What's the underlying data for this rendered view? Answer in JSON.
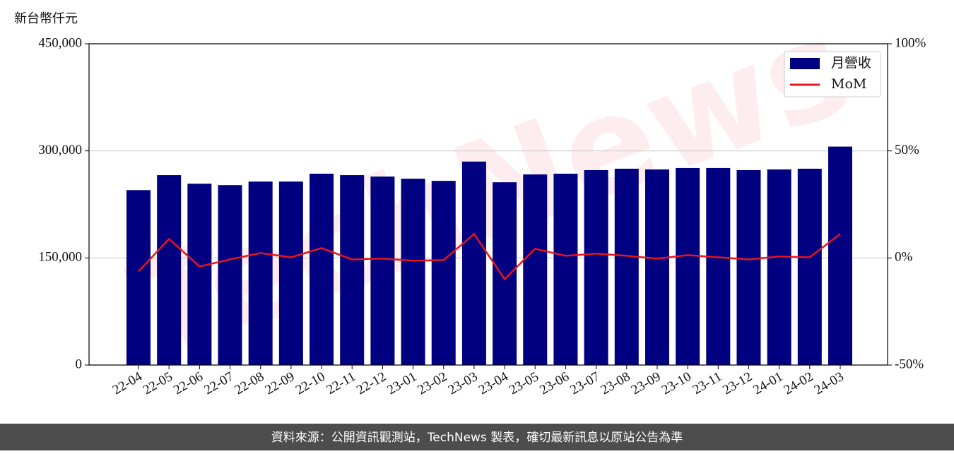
{
  "chart_data": {
    "type": "bar_line",
    "ylabel": "新台幣仟元",
    "watermark": "TechNews",
    "footer": "資料來源：公開資訊觀測站，TechNews 製表，確切最新訊息以原站公告為準",
    "categories": [
      "22-04",
      "22-05",
      "22-06",
      "22-07",
      "22-08",
      "22-09",
      "22-10",
      "22-11",
      "22-12",
      "23-01",
      "23-02",
      "23-03",
      "23-04",
      "23-05",
      "23-06",
      "23-07",
      "23-08",
      "23-09",
      "23-10",
      "23-11",
      "23-12",
      "24-01",
      "24-02",
      "24-03"
    ],
    "series": [
      {
        "name": "月營收",
        "color": "#000080",
        "type": "bar",
        "values": [
          245000,
          266000,
          254000,
          252000,
          257000,
          257000,
          268000,
          266000,
          264000,
          261000,
          258000,
          285000,
          256000,
          267000,
          268000,
          273000,
          275000,
          274000,
          276000,
          276000,
          273000,
          274000,
          275000,
          306000
        ]
      },
      {
        "name": "MoM",
        "color": "#e8141c",
        "type": "line",
        "axis": "y2",
        "values": [
          -6.3,
          8.9,
          -4.0,
          -0.7,
          2.3,
          0.3,
          4.6,
          -0.7,
          -0.3,
          -1.3,
          -1.0,
          11.2,
          -9.9,
          4.3,
          1.0,
          2.0,
          1.0,
          -0.3,
          1.3,
          0.3,
          -0.7,
          0.7,
          0.3,
          11.2
        ]
      }
    ],
    "ylim": [
      0,
      450000
    ],
    "yticks": [
      0,
      {
        "value": 150000,
        "label": "150,000"
      },
      {
        "value": 300000,
        "label": "300,000"
      },
      {
        "value": 450000,
        "label": "450,000"
      }
    ],
    "y2lim": [
      -50,
      100
    ],
    "y2ticks": [
      {
        "value": -50,
        "label": "-50%"
      },
      {
        "value": 0,
        "label": "0%"
      },
      {
        "value": 50,
        "label": "50%"
      },
      {
        "value": 100,
        "label": "100%"
      }
    ],
    "grid": true,
    "legend": "upper right"
  }
}
